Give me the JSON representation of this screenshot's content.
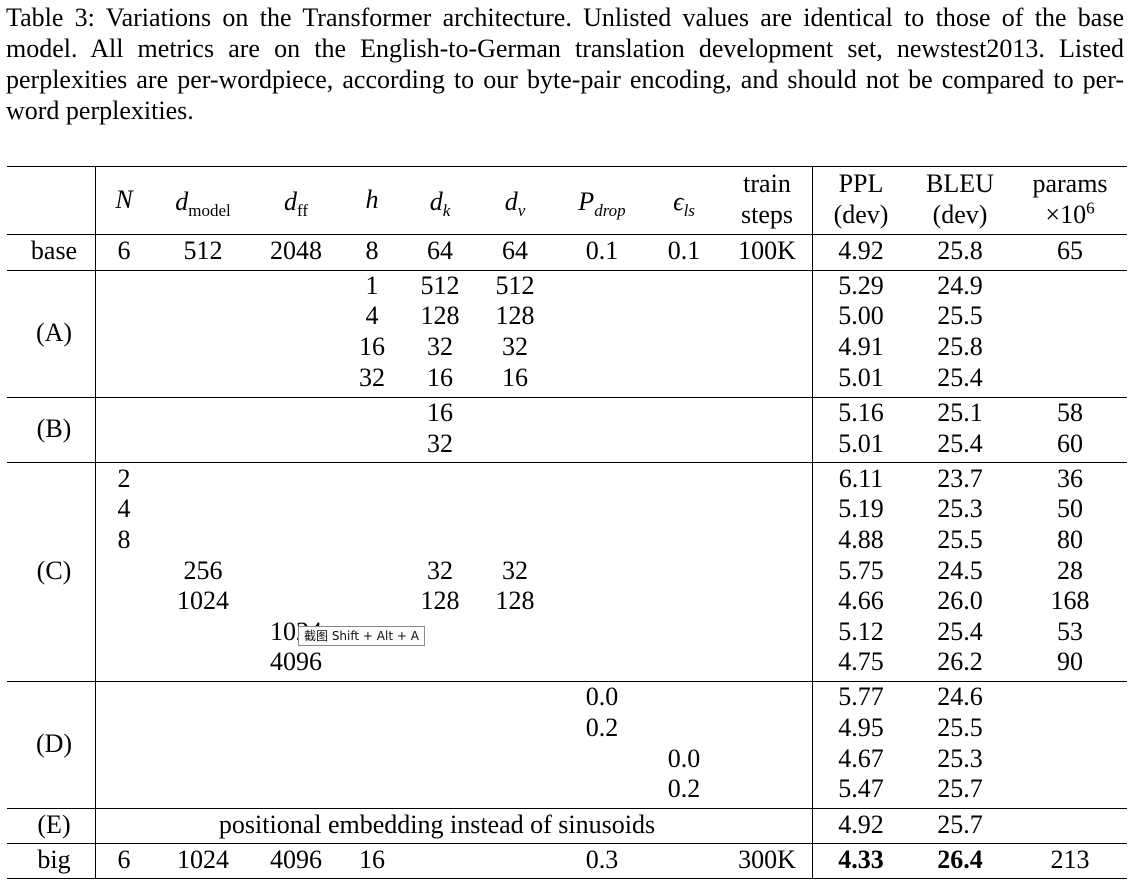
{
  "caption": {
    "label": "Table 3:",
    "text": "Variations on the Transformer architecture. Unlisted values are identical to those of the base model. All metrics are on the English-to-German translation development set, newstest2013. Listed perplexities are per-wordpiece, according to our byte-pair encoding, and should not be compared to per-word perplexities."
  },
  "header": {
    "n": "N",
    "dmodel_base": "d",
    "dmodel_sub": "model",
    "dff_base": "d",
    "dff_sub": "ff",
    "h": "h",
    "dk_base": "d",
    "dk_sub": "k",
    "dv_base": "d",
    "dv_sub": "v",
    "pdrop_base": "P",
    "pdrop_sub": "drop",
    "els_base": "ϵ",
    "els_sub": "ls",
    "train_1": "train",
    "train_2": "steps",
    "ppl_1": "PPL",
    "ppl_2": "(dev)",
    "bleu_1": "BLEU",
    "bleu_2": "(dev)",
    "params_1": "params",
    "params_2": "×10",
    "params_exp": "6"
  },
  "table": {
    "columns": [
      "",
      "N",
      "d_model",
      "d_ff",
      "h",
      "d_k",
      "d_v",
      "P_drop",
      "ε_ls",
      "train steps",
      "PPL (dev)",
      "BLEU (dev)",
      "params ×10^6"
    ],
    "groups": [
      {
        "label": "base",
        "rows": [
          {
            "N": "6",
            "d_model": "512",
            "d_ff": "2048",
            "h": "8",
            "d_k": "64",
            "d_v": "64",
            "P_drop": "0.1",
            "e_ls": "0.1",
            "train": "100K",
            "ppl": "4.92",
            "bleu": "25.8",
            "params": "65"
          }
        ]
      },
      {
        "label": "(A)",
        "rows": [
          {
            "h": "1",
            "d_k": "512",
            "d_v": "512",
            "ppl": "5.29",
            "bleu": "24.9"
          },
          {
            "h": "4",
            "d_k": "128",
            "d_v": "128",
            "ppl": "5.00",
            "bleu": "25.5"
          },
          {
            "h": "16",
            "d_k": "32",
            "d_v": "32",
            "ppl": "4.91",
            "bleu": "25.8"
          },
          {
            "h": "32",
            "d_k": "16",
            "d_v": "16",
            "ppl": "5.01",
            "bleu": "25.4"
          }
        ]
      },
      {
        "label": "(B)",
        "rows": [
          {
            "d_k": "16",
            "ppl": "5.16",
            "bleu": "25.1",
            "params": "58"
          },
          {
            "d_k": "32",
            "ppl": "5.01",
            "bleu": "25.4",
            "params": "60"
          }
        ]
      },
      {
        "label": "(C)",
        "rows": [
          {
            "N": "2",
            "ppl": "6.11",
            "bleu": "23.7",
            "params": "36"
          },
          {
            "N": "4",
            "ppl": "5.19",
            "bleu": "25.3",
            "params": "50"
          },
          {
            "N": "8",
            "ppl": "4.88",
            "bleu": "25.5",
            "params": "80"
          },
          {
            "d_model": "256",
            "d_k": "32",
            "d_v": "32",
            "ppl": "5.75",
            "bleu": "24.5",
            "params": "28"
          },
          {
            "d_model": "1024",
            "d_k": "128",
            "d_v": "128",
            "ppl": "4.66",
            "bleu": "26.0",
            "params": "168"
          },
          {
            "d_ff": "1024",
            "ppl": "5.12",
            "bleu": "25.4",
            "params": "53"
          },
          {
            "d_ff": "4096",
            "ppl": "4.75",
            "bleu": "26.2",
            "params": "90"
          }
        ]
      },
      {
        "label": "(D)",
        "rows": [
          {
            "P_drop": "0.0",
            "ppl": "5.77",
            "bleu": "24.6"
          },
          {
            "P_drop": "0.2",
            "ppl": "4.95",
            "bleu": "25.5"
          },
          {
            "e_ls": "0.0",
            "ppl": "4.67",
            "bleu": "25.3"
          },
          {
            "e_ls": "0.2",
            "ppl": "5.47",
            "bleu": "25.7"
          }
        ]
      },
      {
        "label": "(E)",
        "rows": [
          {
            "span": "positional embedding instead of sinusoids",
            "ppl": "4.92",
            "bleu": "25.7"
          }
        ]
      },
      {
        "label": "big",
        "rows": [
          {
            "N": "6",
            "d_model": "1024",
            "d_ff": "4096",
            "h": "16",
            "P_drop": "0.3",
            "train": "300K",
            "ppl": "4.33",
            "bleu": "26.4",
            "params": "213",
            "bold": [
              "ppl",
              "bleu"
            ]
          }
        ]
      }
    ]
  },
  "tooltip": {
    "text": "截图 Shift + Alt + A"
  }
}
